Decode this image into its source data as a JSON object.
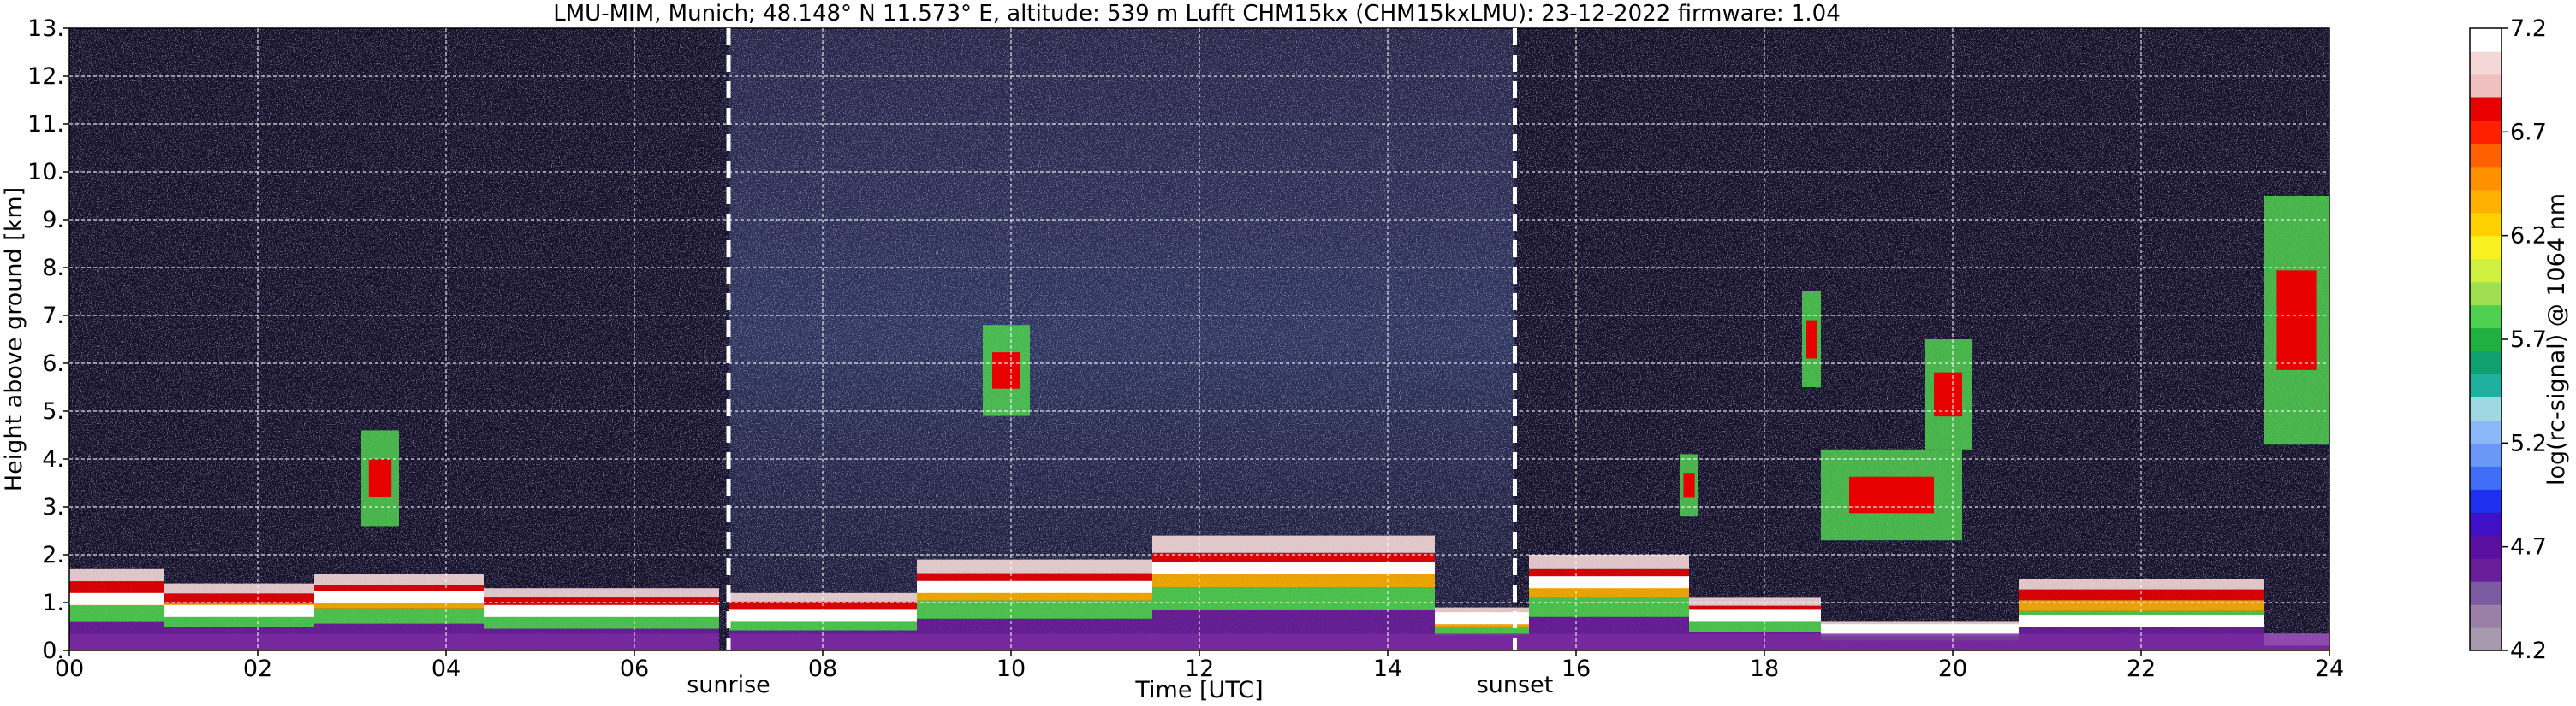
{
  "chart_data": {
    "type": "heatmap",
    "title": "LMU-MIM, Munich; 48.148° N 11.573° E, altitude: 539 m    Lufft CHM15kx (CHM15kxLMU): 23-12-2022    firmware: 1.04",
    "xlabel": "Time [UTC]",
    "ylabel": "Height above ground [km]",
    "xlim": [
      0,
      24
    ],
    "ylim": [
      0,
      13
    ],
    "x_ticks": [
      0,
      2,
      4,
      6,
      8,
      10,
      12,
      14,
      16,
      18,
      20,
      22,
      24
    ],
    "x_tick_labels": [
      "00",
      "02",
      "04",
      "06",
      "08",
      "10",
      "12",
      "14",
      "16",
      "18",
      "20",
      "22",
      "24"
    ],
    "y_ticks": [
      0,
      1,
      2,
      3,
      4,
      5,
      6,
      7,
      8,
      9,
      10,
      11,
      12,
      13
    ],
    "y_tick_labels": [
      "0.",
      "1.",
      "2.",
      "3.",
      "4.",
      "5.",
      "6.",
      "7.",
      "8.",
      "9.",
      "10.",
      "11.",
      "12.",
      "13."
    ],
    "grid": true,
    "colorbar": {
      "label": "log(rc-signal) @ 1064 nm",
      "range": [
        4.2,
        7.2
      ],
      "ticks": [
        4.2,
        4.7,
        5.2,
        5.7,
        6.2,
        6.7,
        7.2
      ],
      "tick_labels": [
        "4.2",
        "4.7",
        "5.2",
        "5.7",
        "6.2",
        "6.7",
        "7.2"
      ],
      "colors": [
        "#a89aae",
        "#9a7fa6",
        "#7a5aa0",
        "#6a1f9a",
        "#5a0fa0",
        "#4010c8",
        "#2030f0",
        "#3f6df5",
        "#6a98f8",
        "#8cb8fa",
        "#9fd8e0",
        "#20b0a0",
        "#10a070",
        "#20b040",
        "#50d050",
        "#a0e050",
        "#d0f040",
        "#f8f020",
        "#ffd000",
        "#ffb000",
        "#ff9000",
        "#ff6000",
        "#ff2000",
        "#e80000",
        "#f0c0c0",
        "#f4d8d8",
        "#ffffff"
      ]
    },
    "events": [
      {
        "label": "sunrise",
        "time": 7.0
      },
      {
        "label": "sunset",
        "time": 15.35
      }
    ],
    "cloud_layers": [
      {
        "t0": 0.0,
        "t1": 1.0,
        "top_km": 1.7,
        "core_km": 0.95
      },
      {
        "t0": 1.0,
        "t1": 2.6,
        "top_km": 1.4,
        "core_km": 0.7
      },
      {
        "t0": 2.6,
        "t1": 4.4,
        "top_km": 1.6,
        "core_km": 1.0
      },
      {
        "t0": 4.4,
        "t1": 6.9,
        "top_km": 1.3,
        "core_km": 0.7
      },
      {
        "t0": 7.0,
        "t1": 9.0,
        "top_km": 1.2,
        "core_km": 0.6
      },
      {
        "t0": 9.0,
        "t1": 11.5,
        "top_km": 1.9,
        "core_km": 1.2
      },
      {
        "t0": 11.5,
        "t1": 14.5,
        "top_km": 2.4,
        "core_km": 1.6
      },
      {
        "t0": 14.5,
        "t1": 15.5,
        "top_km": 0.9,
        "core_km": 0.55
      },
      {
        "t0": 15.5,
        "t1": 17.2,
        "top_km": 2.0,
        "core_km": 1.3
      },
      {
        "t0": 17.2,
        "t1": 18.6,
        "top_km": 1.1,
        "core_km": 0.6
      },
      {
        "t0": 18.6,
        "t1": 20.7,
        "top_km": 0.6,
        "core_km": 0.3
      },
      {
        "t0": 20.7,
        "t1": 23.3,
        "top_km": 1.5,
        "core_km": 0.5
      },
      {
        "t0": 23.3,
        "t1": 24.0,
        "top_km": 0.3,
        "core_km": 0.1
      }
    ],
    "elevated_layers": [
      {
        "t0": 3.1,
        "t1": 3.5,
        "bottom_km": 2.6,
        "top_km": 4.6
      },
      {
        "t0": 9.7,
        "t1": 10.2,
        "bottom_km": 4.9,
        "top_km": 6.8
      },
      {
        "t0": 17.1,
        "t1": 17.3,
        "bottom_km": 2.8,
        "top_km": 4.1
      },
      {
        "t0": 18.4,
        "t1": 18.6,
        "bottom_km": 5.5,
        "top_km": 7.5
      },
      {
        "t0": 18.6,
        "t1": 20.1,
        "bottom_km": 2.3,
        "top_km": 4.2
      },
      {
        "t0": 19.7,
        "t1": 20.2,
        "bottom_km": 4.2,
        "top_km": 6.5
      },
      {
        "t0": 23.3,
        "t1": 24.0,
        "bottom_km": 4.3,
        "top_km": 9.5
      }
    ]
  }
}
